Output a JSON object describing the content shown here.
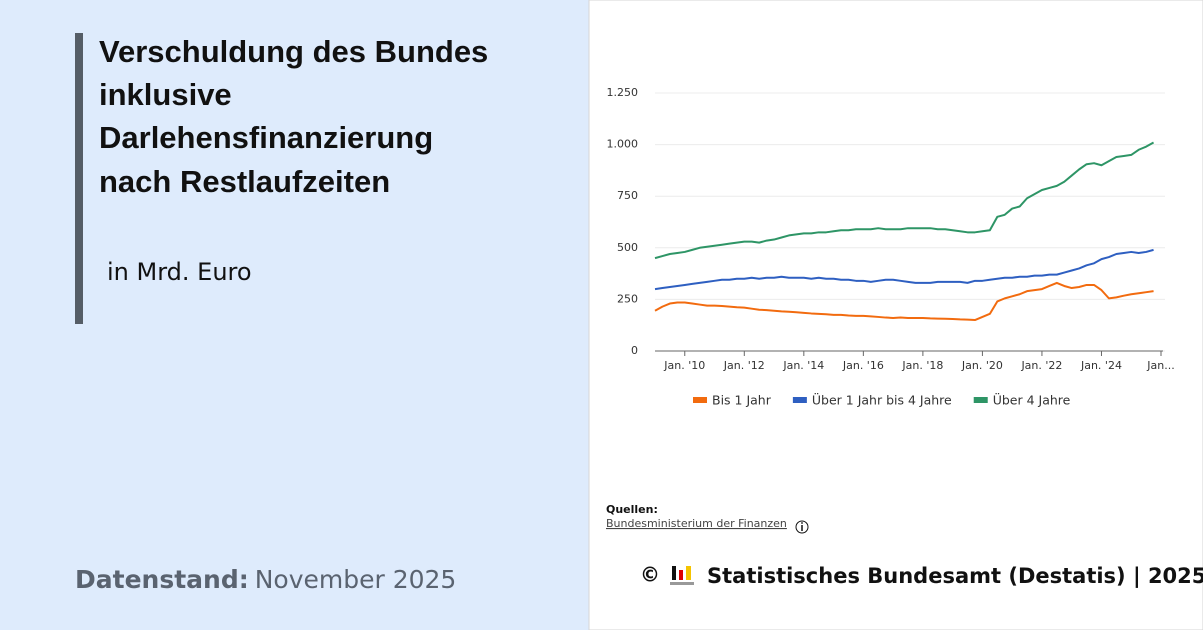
{
  "chart_data": {
    "type": "line",
    "title_lines": [
      "Verschuldung des Bundes",
      "inklusive",
      "Darlehensfinanzierung",
      "nach Restlaufzeiten"
    ],
    "subtitle": "in Mrd. Euro",
    "datenstand_label": "Datenstand:",
    "datenstand_value": "November 2025",
    "source_heading": "Quellen:",
    "source": "Bundesministerium der Finanzen",
    "copyright": "©",
    "footer": "Statistisches Bundesamt (Destatis) | 2025",
    "xlim": [
      2009,
      2026
    ],
    "xticks": [
      {
        "value": 2010,
        "label": "Jan. '10"
      },
      {
        "value": 2012,
        "label": "Jan. '12"
      },
      {
        "value": 2014,
        "label": "Jan. '14"
      },
      {
        "value": 2016,
        "label": "Jan. '16"
      },
      {
        "value": 2018,
        "label": "Jan. '18"
      },
      {
        "value": 2020,
        "label": "Jan. '20"
      },
      {
        "value": 2022,
        "label": "Jan. '22"
      },
      {
        "value": 2024,
        "label": "Jan. '24"
      },
      {
        "value": 2026,
        "label": "Jan..."
      }
    ],
    "ylim": [
      0,
      1250
    ],
    "yticks": [
      0,
      250,
      500,
      750,
      {
        "value": 1000,
        "label": "1.000"
      },
      {
        "value": 1250,
        "label": "1.250"
      }
    ],
    "grid": true,
    "x": [
      2009,
      2009.25,
      2009.5,
      2009.75,
      2010,
      2010.25,
      2010.5,
      2010.75,
      2011,
      2011.25,
      2011.5,
      2011.75,
      2012,
      2012.25,
      2012.5,
      2012.75,
      2013,
      2013.25,
      2013.5,
      2013.75,
      2014,
      2014.25,
      2014.5,
      2014.75,
      2015,
      2015.25,
      2015.5,
      2015.75,
      2016,
      2016.25,
      2016.5,
      2016.75,
      2017,
      2017.25,
      2017.5,
      2017.75,
      2018,
      2018.25,
      2018.5,
      2018.75,
      2019,
      2019.25,
      2019.5,
      2019.75,
      2020,
      2020.25,
      2020.5,
      2020.75,
      2021,
      2021.25,
      2021.5,
      2021.75,
      2022,
      2022.25,
      2022.5,
      2022.75,
      2023,
      2023.25,
      2023.5,
      2023.75,
      2024,
      2024.25,
      2024.5,
      2024.75,
      2025,
      2025.25,
      2025.5,
      2025.75
    ],
    "series": [
      {
        "name": "Bis 1 Jahr",
        "color": "#f26b0f",
        "values": [
          195,
          215,
          230,
          235,
          235,
          230,
          225,
          220,
          220,
          218,
          215,
          212,
          210,
          205,
          200,
          198,
          195,
          192,
          190,
          188,
          185,
          182,
          180,
          178,
          175,
          175,
          172,
          170,
          170,
          168,
          165,
          162,
          160,
          162,
          160,
          160,
          160,
          158,
          157,
          156,
          155,
          153,
          152,
          150,
          165,
          180,
          240,
          255,
          265,
          275,
          290,
          295,
          300,
          315,
          330,
          315,
          305,
          310,
          320,
          320,
          295,
          255,
          260,
          268,
          275,
          280,
          285,
          290
        ]
      },
      {
        "name": "Über 1 Jahr bis 4 Jahre",
        "color": "#2e5fc1",
        "values": [
          300,
          305,
          310,
          315,
          320,
          325,
          330,
          335,
          340,
          345,
          345,
          350,
          350,
          355,
          350,
          355,
          355,
          360,
          355,
          355,
          355,
          350,
          355,
          350,
          350,
          345,
          345,
          340,
          340,
          335,
          340,
          345,
          345,
          340,
          335,
          330,
          330,
          330,
          335,
          335,
          335,
          335,
          330,
          340,
          340,
          345,
          350,
          355,
          355,
          360,
          360,
          365,
          365,
          370,
          370,
          380,
          390,
          400,
          415,
          425,
          445,
          455,
          470,
          475,
          480,
          475,
          480,
          490
        ]
      },
      {
        "name": "Über 4 Jahre",
        "color": "#2e9566",
        "values": [
          450,
          460,
          470,
          475,
          480,
          490,
          500,
          505,
          510,
          515,
          520,
          525,
          530,
          530,
          525,
          535,
          540,
          550,
          560,
          565,
          570,
          570,
          575,
          575,
          580,
          585,
          585,
          590,
          590,
          590,
          595,
          590,
          590,
          590,
          595,
          595,
          595,
          595,
          590,
          590,
          585,
          580,
          575,
          575,
          580,
          585,
          650,
          660,
          690,
          700,
          740,
          760,
          780,
          790,
          800,
          820,
          850,
          880,
          905,
          910,
          900,
          920,
          940,
          945,
          950,
          975,
          990,
          1010
        ]
      }
    ]
  }
}
